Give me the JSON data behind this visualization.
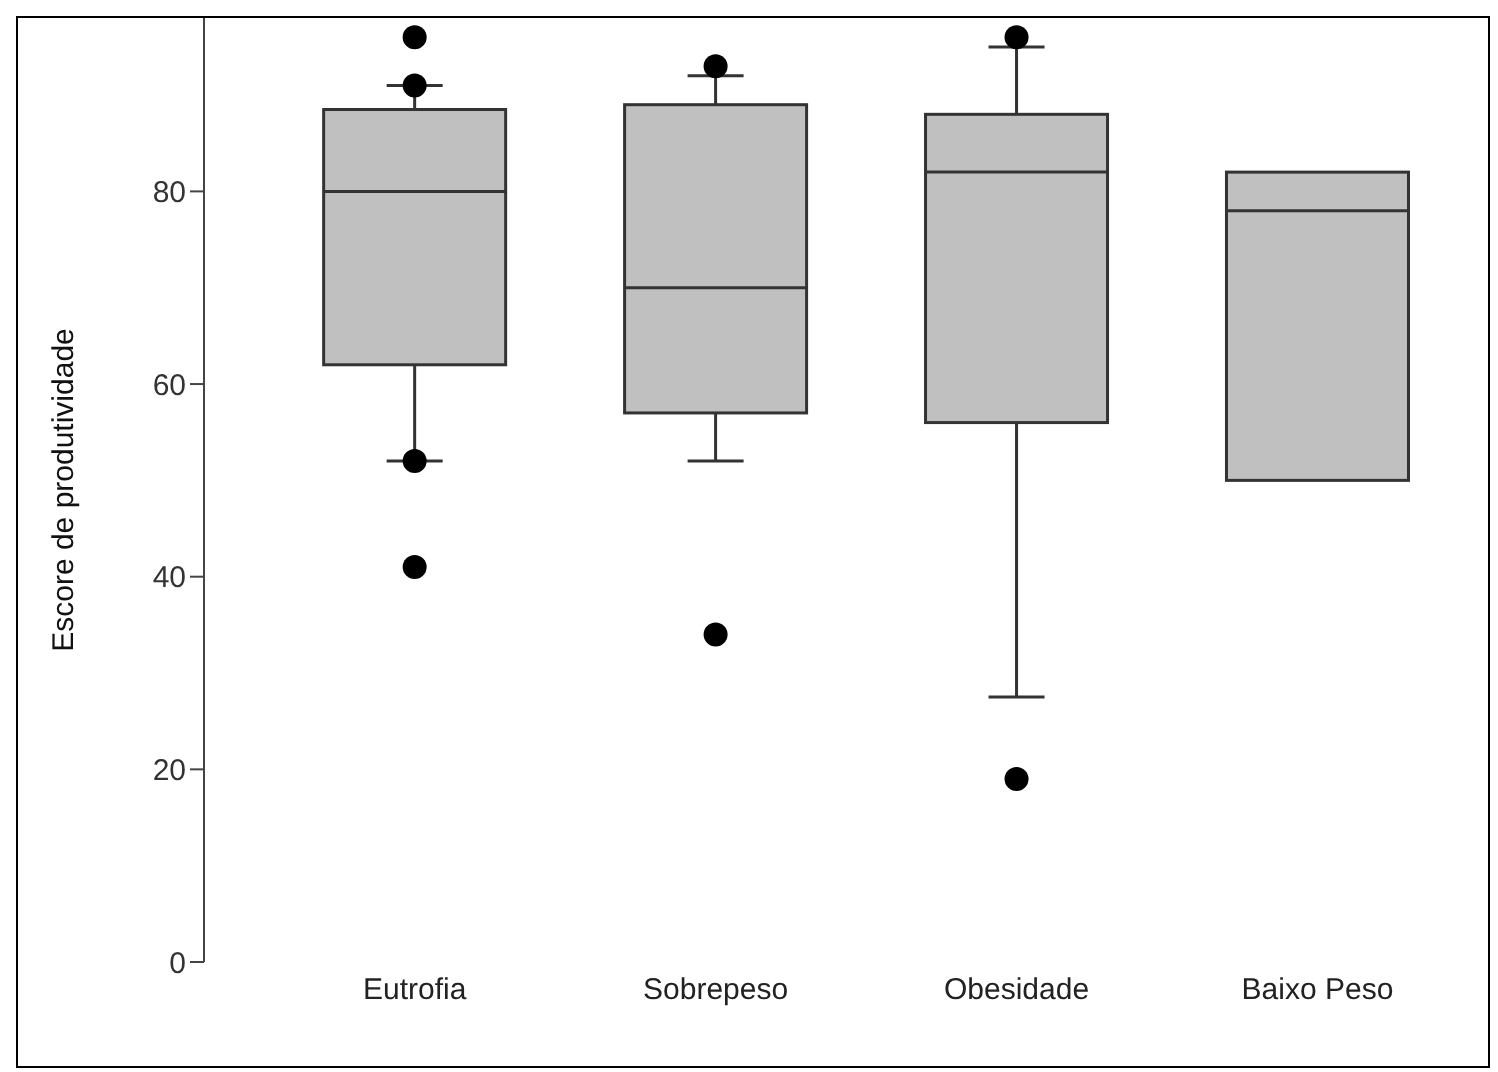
{
  "chart_data": {
    "type": "box",
    "ylabel": "Escore de produtividade",
    "categories": [
      "Eutrofia",
      "Sobrepeso",
      "Obesidade",
      "Baixo Peso"
    ],
    "color": "#c0c0c0",
    "boxes": [
      {
        "low": 52,
        "q1": 62,
        "median": 80,
        "q3": 88.5,
        "high": 91,
        "outliers": [
          96,
          91,
          52,
          41
        ]
      },
      {
        "low": 52,
        "q1": 57,
        "median": 70,
        "q3": 89,
        "high": 92,
        "outliers": [
          93,
          34
        ]
      },
      {
        "low": 27.5,
        "q1": 56,
        "median": 82,
        "q3": 88,
        "high": 95,
        "outliers": [
          96,
          19
        ]
      },
      {
        "low": 50,
        "q1": 50,
        "median": 78,
        "q3": 82,
        "high": 82
      }
    ],
    "ylim": [
      0,
      98
    ],
    "yticks": [
      0,
      20,
      40,
      60,
      80
    ],
    "grid": false,
    "legend": false
  }
}
